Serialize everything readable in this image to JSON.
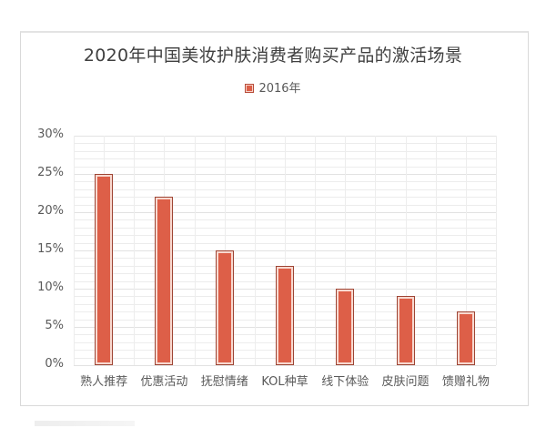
{
  "chart_data": {
    "type": "bar",
    "title": "2020年中国美妆护肤消费者购买产品的激活场景",
    "legend": [
      "2016年"
    ],
    "legend_position": "top",
    "categories": [
      "熟人推荐",
      "优惠活动",
      "抚慰情绪",
      "KOL种草",
      "线下体验",
      "皮肤问题",
      "馈赠礼物"
    ],
    "series": [
      {
        "name": "2016年",
        "values": [
          25,
          22,
          15,
          13,
          10,
          9,
          7
        ],
        "color": "#dd5f48"
      }
    ],
    "unit": "%",
    "xlabel": "",
    "ylabel": "",
    "ylim": [
      0,
      30
    ],
    "yticks": [
      "0%",
      "5%",
      "10%",
      "15%",
      "20%",
      "25%",
      "30%"
    ],
    "grid": true
  }
}
